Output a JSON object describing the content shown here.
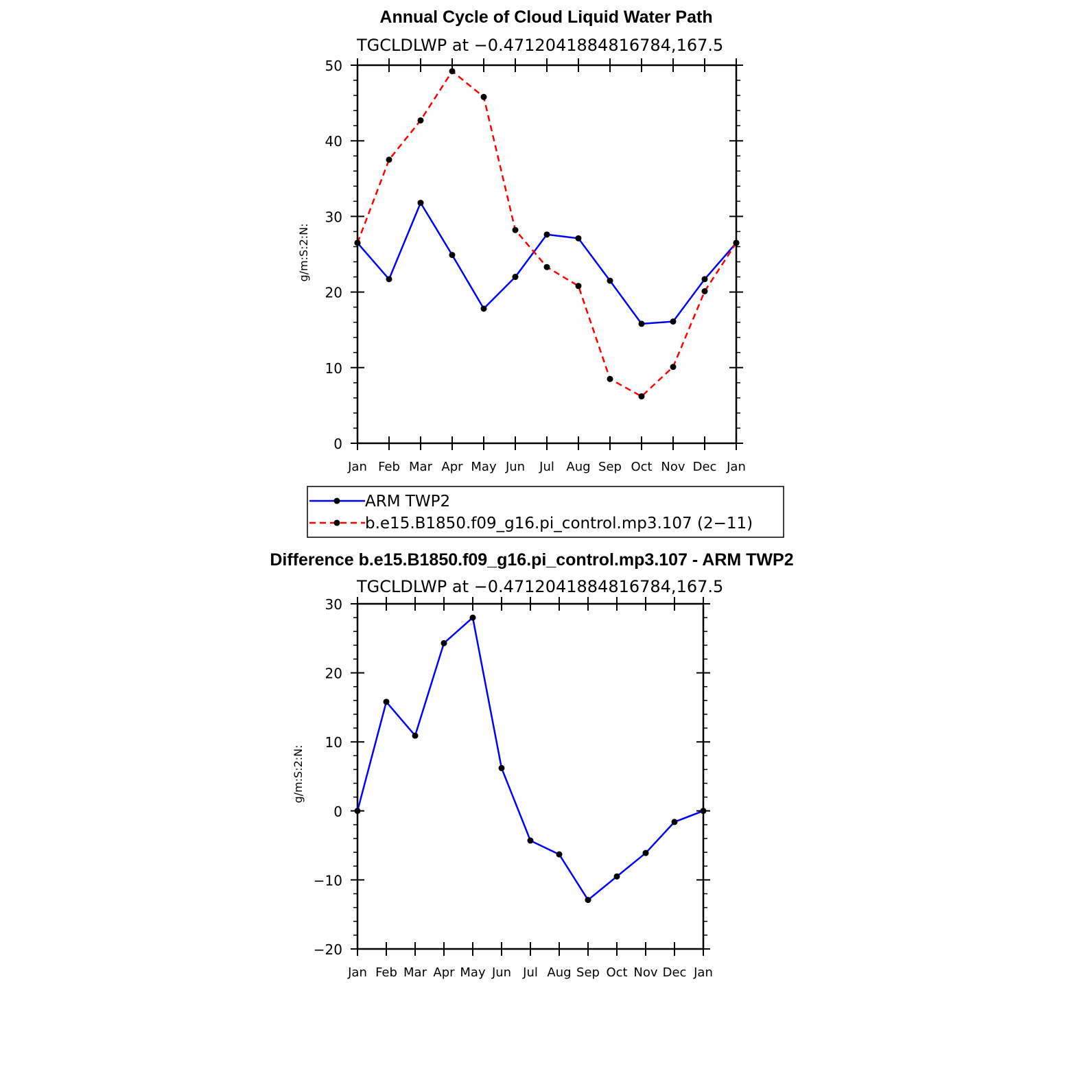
{
  "chart_data": [
    {
      "type": "line",
      "title": "Annual Cycle of Cloud Liquid Water Path",
      "subtitle": "TGCLDLWP at −0.4712041884816784,167.5",
      "xlabel": "",
      "ylabel": "g/m:S:2:N:",
      "categories": [
        "Jan",
        "Feb",
        "Mar",
        "Apr",
        "May",
        "Jun",
        "Jul",
        "Aug",
        "Sep",
        "Oct",
        "Nov",
        "Dec",
        "Jan"
      ],
      "ylim": [
        0,
        50
      ],
      "yticks": [
        0,
        10,
        20,
        30,
        40,
        50
      ],
      "series": [
        {
          "name": "ARM TWP2",
          "color": "#0000ff",
          "dashed": false,
          "values": [
            26.5,
            21.7,
            31.8,
            24.9,
            17.8,
            22.0,
            27.6,
            27.1,
            21.5,
            15.8,
            16.1,
            21.7,
            26.5
          ]
        },
        {
          "name": "b.e15.B1850.f09_g16.pi_control.mp3.107 (2−11)",
          "color": "#ff0000",
          "dashed": true,
          "values": [
            26.5,
            37.5,
            42.7,
            49.2,
            45.8,
            28.2,
            23.3,
            20.8,
            8.5,
            6.2,
            10.1,
            20.1,
            26.5
          ]
        }
      ],
      "legend": "below"
    },
    {
      "type": "line",
      "title": "Difference b.e15.B1850.f09_g16.pi_control.mp3.107 - ARM TWP2",
      "subtitle": "TGCLDLWP at −0.4712041884816784,167.5",
      "xlabel": "",
      "ylabel": "g/m:S:2:N:",
      "categories": [
        "Jan",
        "Feb",
        "Mar",
        "Apr",
        "May",
        "Jun",
        "Jul",
        "Aug",
        "Sep",
        "Oct",
        "Nov",
        "Dec",
        "Jan"
      ],
      "ylim": [
        -20,
        30
      ],
      "yticks": [
        -20,
        -10,
        0,
        10,
        20,
        30
      ],
      "series": [
        {
          "name": "Difference",
          "color": "#0000ff",
          "dashed": false,
          "values": [
            0.0,
            15.8,
            10.9,
            24.3,
            28.0,
            6.2,
            -4.3,
            -6.3,
            -12.9,
            -9.5,
            -6.1,
            -1.6,
            0.0
          ]
        }
      ]
    }
  ]
}
